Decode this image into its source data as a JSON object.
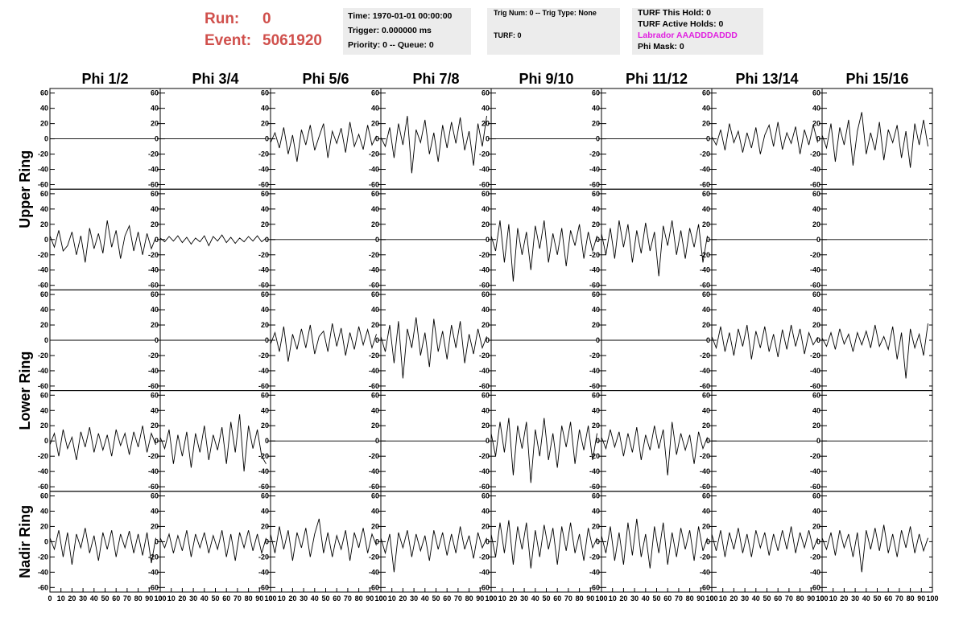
{
  "header": {
    "run_label": "Run:",
    "run": "0",
    "event_label": "Event:",
    "event": "5061920",
    "box1": [
      "Time: 1970-01-01 00:00:00",
      "Trigger: 0.000000 ms",
      "Priority: 0 -- Queue: 0"
    ],
    "box2": [
      "Trig Num: 0 -- Trig Type: None",
      "TURF: 0"
    ],
    "box3": [
      "TURF This Hold: 0",
      "TURF Active Holds: 0",
      "Labrador AAADDDADDD",
      "Phi Mask: 0"
    ]
  },
  "chart_data": {
    "type": "line",
    "columns": [
      "Phi 1/2",
      "Phi 3/4",
      "Phi 5/6",
      "Phi 7/8",
      "Phi 9/10",
      "Phi 11/12",
      "Phi 13/14",
      "Phi 15/16"
    ],
    "rows": [
      "Upper Ring",
      "Lower Ring",
      "Nadir Ring"
    ],
    "color": "#000000",
    "x": [
      0,
      4,
      8,
      12,
      16,
      20,
      24,
      28,
      32,
      36,
      40,
      44,
      48,
      52,
      56,
      60,
      64,
      68,
      72,
      76,
      80,
      84,
      88,
      92,
      96
    ],
    "xlim": [
      0,
      100
    ],
    "xticks": [
      0,
      10,
      20,
      30,
      40,
      50,
      60,
      70,
      80,
      90,
      100
    ],
    "ylim": [
      -66,
      66
    ],
    "yticks": [
      60,
      40,
      20,
      0,
      -20,
      -40,
      -60
    ],
    "panels": [
      [
        [
          0,
          0,
          0,
          0,
          0,
          0,
          0,
          0,
          0,
          0,
          0,
          0,
          0,
          0,
          0,
          0,
          0,
          0,
          0,
          0,
          0,
          0,
          0,
          0,
          0
        ],
        [
          0,
          0,
          0,
          0,
          0,
          0,
          0,
          0,
          0,
          0,
          0,
          0,
          0,
          0,
          0,
          0,
          0,
          0,
          0,
          0,
          0,
          0,
          0,
          0,
          0
        ],
        [
          -5,
          8,
          -12,
          15,
          -20,
          5,
          -30,
          12,
          -8,
          18,
          -15,
          3,
          20,
          -25,
          10,
          -6,
          14,
          -18,
          22,
          -10,
          6,
          -14,
          18,
          -8,
          4
        ],
        [
          2,
          -10,
          15,
          -25,
          20,
          -8,
          30,
          -45,
          12,
          -5,
          25,
          -20,
          8,
          -30,
          18,
          -12,
          22,
          -6,
          28,
          -15,
          10,
          -35,
          20,
          -10,
          30
        ],
        [
          0,
          0,
          0,
          0,
          0,
          0,
          0,
          0,
          0,
          0,
          0,
          0,
          0,
          0,
          0,
          0,
          0,
          0,
          0,
          0,
          0,
          0,
          0,
          0,
          0
        ],
        [
          0,
          0,
          0,
          0,
          0,
          0,
          0,
          0,
          0,
          0,
          0,
          0,
          0,
          0,
          0,
          0,
          0,
          0,
          0,
          0,
          0,
          0,
          0,
          0,
          0
        ],
        [
          3,
          -8,
          12,
          -15,
          20,
          -5,
          10,
          -18,
          8,
          -12,
          15,
          -20,
          5,
          18,
          -10,
          22,
          -14,
          8,
          -6,
          16,
          -20,
          12,
          -8,
          18,
          -5
        ],
        [
          5,
          -12,
          20,
          -30,
          15,
          -8,
          25,
          -35,
          10,
          35,
          -20,
          8,
          -15,
          22,
          -28,
          12,
          -5,
          18,
          -25,
          10,
          -38,
          20,
          -8,
          25,
          -10
        ]
      ],
      [
        [
          5,
          -10,
          12,
          -15,
          -8,
          10,
          -20,
          5,
          -30,
          15,
          -12,
          8,
          -18,
          25,
          -10,
          12,
          -25,
          5,
          18,
          -15,
          10,
          -20,
          8,
          -12,
          3
        ],
        [
          2,
          -3,
          4,
          -2,
          5,
          -4,
          3,
          -6,
          2,
          -3,
          5,
          -8,
          4,
          -2,
          6,
          -4,
          3,
          -5,
          2,
          -3,
          4,
          -2,
          5,
          -3,
          2
        ],
        [
          0,
          0,
          0,
          0,
          0,
          0,
          0,
          0,
          0,
          0,
          0,
          0,
          0,
          0,
          0,
          0,
          0,
          0,
          0,
          0,
          0,
          0,
          0,
          0,
          0
        ],
        [
          0,
          0,
          0,
          0,
          0,
          0,
          0,
          0,
          0,
          0,
          0,
          0,
          0,
          0,
          0,
          0,
          0,
          0,
          0,
          0,
          0,
          0,
          0,
          0,
          0
        ],
        [
          5,
          -15,
          25,
          -30,
          20,
          -55,
          15,
          -20,
          10,
          -40,
          18,
          -12,
          25,
          -30,
          8,
          -20,
          15,
          -35,
          12,
          -8,
          20,
          -25,
          10,
          -15,
          5
        ],
        [
          8,
          -20,
          15,
          -25,
          25,
          -10,
          20,
          -30,
          12,
          -18,
          22,
          -15,
          10,
          -48,
          18,
          -8,
          25,
          -20,
          12,
          -25,
          15,
          -10,
          20,
          -30,
          5
        ],
        [
          0,
          0,
          0,
          0,
          0,
          0,
          0,
          0,
          0,
          0,
          0,
          0,
          0,
          0,
          0,
          0,
          0,
          0,
          0,
          0,
          0,
          0,
          0,
          0,
          0
        ],
        [
          0,
          0,
          0,
          0,
          0,
          0,
          0,
          0,
          0,
          0,
          0,
          0,
          0,
          0,
          0,
          0,
          0,
          0,
          0,
          0,
          0,
          0,
          0,
          0,
          0
        ]
      ],
      [
        [
          0,
          0,
          0,
          0,
          0,
          0,
          0,
          0,
          0,
          0,
          0,
          0,
          0,
          0,
          0,
          0,
          0,
          0,
          0,
          0,
          0,
          0,
          0,
          0,
          0
        ],
        [
          0,
          0,
          0,
          0,
          0,
          0,
          0,
          0,
          0,
          0,
          0,
          0,
          0,
          0,
          0,
          0,
          0,
          0,
          0,
          0,
          0,
          0,
          0,
          0,
          0
        ],
        [
          -5,
          10,
          -15,
          18,
          -28,
          8,
          -12,
          15,
          -10,
          20,
          -18,
          5,
          12,
          -15,
          22,
          -8,
          16,
          -20,
          10,
          -12,
          18,
          -6,
          14,
          -10,
          8
        ],
        [
          5,
          -15,
          20,
          -30,
          25,
          -50,
          15,
          -10,
          30,
          -20,
          10,
          -35,
          28,
          -15,
          12,
          -25,
          20,
          -10,
          25,
          -30,
          8,
          -18,
          15,
          -10,
          5
        ],
        [
          0,
          0,
          0,
          0,
          0,
          0,
          0,
          0,
          0,
          0,
          0,
          0,
          0,
          0,
          0,
          0,
          0,
          0,
          0,
          0,
          0,
          0,
          0,
          0,
          0
        ],
        [
          0,
          0,
          0,
          0,
          0,
          0,
          0,
          0,
          0,
          0,
          0,
          0,
          0,
          0,
          0,
          0,
          0,
          0,
          0,
          0,
          0,
          0,
          0,
          0,
          0
        ],
        [
          5,
          -10,
          18,
          -15,
          10,
          -20,
          15,
          -8,
          20,
          -25,
          12,
          -10,
          18,
          -15,
          8,
          -22,
          14,
          -12,
          20,
          -8,
          15,
          -18,
          10,
          -6,
          4
        ],
        [
          3,
          -8,
          10,
          -12,
          15,
          -5,
          8,
          -15,
          10,
          -6,
          12,
          -10,
          20,
          -8,
          5,
          -12,
          18,
          -25,
          10,
          -50,
          15,
          -10,
          8,
          -20,
          22
        ]
      ],
      [
        [
          -5,
          10,
          -20,
          15,
          -10,
          5,
          -25,
          12,
          -8,
          18,
          -15,
          10,
          -12,
          8,
          -20,
          15,
          -6,
          10,
          -18,
          12,
          -8,
          20,
          -15,
          10,
          -5
        ],
        [
          5,
          -10,
          15,
          -30,
          8,
          -20,
          12,
          -35,
          10,
          -15,
          20,
          -25,
          8,
          -12,
          18,
          -30,
          25,
          -15,
          35,
          -40,
          20,
          -10,
          15,
          -20,
          -30
        ],
        [
          0,
          0,
          0,
          0,
          0,
          0,
          0,
          0,
          0,
          0,
          0,
          0,
          0,
          0,
          0,
          0,
          0,
          0,
          0,
          0,
          0,
          0,
          0,
          0,
          0
        ],
        [
          0,
          0,
          0,
          0,
          0,
          0,
          0,
          0,
          0,
          0,
          0,
          0,
          0,
          0,
          0,
          0,
          0,
          0,
          0,
          0,
          0,
          0,
          0,
          0,
          0
        ],
        [
          10,
          -20,
          25,
          -15,
          30,
          -45,
          20,
          -10,
          25,
          -55,
          15,
          -20,
          30,
          -25,
          10,
          -35,
          20,
          -8,
          25,
          -30,
          15,
          -12,
          20,
          -25,
          10
        ],
        [
          5,
          -10,
          15,
          -8,
          12,
          -20,
          10,
          -15,
          18,
          -25,
          8,
          -12,
          20,
          -10,
          15,
          -45,
          25,
          -18,
          10,
          -12,
          8,
          -30,
          12,
          -10,
          5
        ],
        [
          0,
          0,
          0,
          0,
          0,
          0,
          0,
          0,
          0,
          0,
          0,
          0,
          0,
          0,
          0,
          0,
          0,
          0,
          0,
          0,
          0,
          0,
          0,
          0,
          0
        ],
        [
          0,
          0,
          0,
          0,
          0,
          0,
          0,
          0,
          0,
          0,
          0,
          0,
          0,
          0,
          0,
          0,
          0,
          0,
          0,
          0,
          0,
          0,
          0,
          0,
          0
        ]
      ],
      [
        [
          5,
          -10,
          15,
          -20,
          12,
          -30,
          10,
          -8,
          18,
          -15,
          8,
          -25,
          12,
          -10,
          15,
          -20,
          10,
          -8,
          14,
          -15,
          10,
          -18,
          12,
          -28,
          5
        ],
        [
          5,
          -8,
          10,
          -15,
          8,
          -12,
          15,
          -20,
          10,
          -8,
          12,
          -15,
          8,
          -10,
          15,
          -20,
          10,
          -25,
          12,
          -8,
          15,
          -12,
          10,
          -15,
          5
        ],
        [
          10,
          -15,
          20,
          -10,
          15,
          -25,
          12,
          -8,
          18,
          -20,
          10,
          30,
          -15,
          12,
          -20,
          8,
          -10,
          15,
          -25,
          12,
          -8,
          18,
          -15,
          10,
          -5
        ],
        [
          5,
          -15,
          10,
          -40,
          12,
          -8,
          15,
          -20,
          10,
          -12,
          8,
          -25,
          15,
          -10,
          12,
          -18,
          10,
          -15,
          20,
          -10,
          8,
          -22,
          12,
          -8,
          5
        ],
        [
          10,
          -20,
          25,
          -15,
          28,
          -30,
          20,
          -10,
          25,
          -35,
          15,
          -20,
          22,
          -10,
          18,
          -30,
          20,
          -12,
          25,
          -15,
          10,
          -25,
          18,
          -8,
          5
        ],
        [
          8,
          -15,
          20,
          -25,
          12,
          -30,
          25,
          -18,
          30,
          -20,
          10,
          -35,
          20,
          -15,
          25,
          -30,
          12,
          -20,
          18,
          -10,
          15,
          -25,
          20,
          -12,
          5
        ],
        [
          10,
          -12,
          15,
          -20,
          12,
          -10,
          18,
          -15,
          10,
          -20,
          15,
          -8,
          12,
          -18,
          10,
          -12,
          15,
          -10,
          20,
          -15,
          12,
          -8,
          15,
          -10,
          5
        ],
        [
          5,
          -10,
          12,
          -18,
          15,
          -8,
          10,
          -20,
          12,
          -40,
          15,
          -10,
          18,
          -12,
          22,
          -15,
          10,
          -20,
          15,
          -8,
          20,
          -15,
          10,
          -12,
          5
        ]
      ]
    ]
  }
}
